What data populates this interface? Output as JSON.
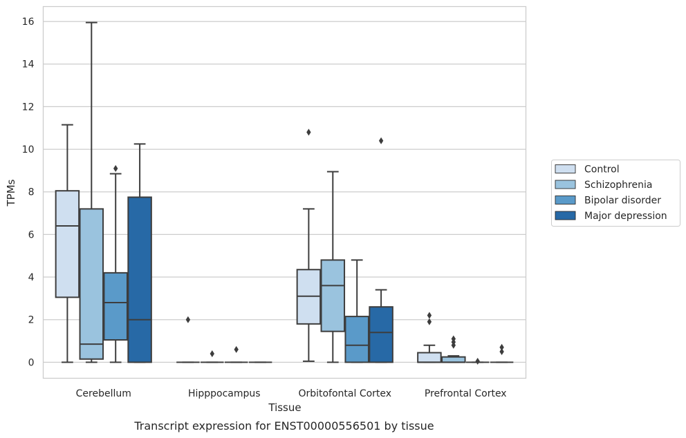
{
  "chart_data": {
    "type": "box",
    "title": "",
    "xlabel": "Tissue",
    "ylabel": "TPMs",
    "caption": "Transcript expression for ENST00000556501 by tissue",
    "ylim": [
      -0.75,
      16.7
    ],
    "yticks": [
      0,
      2,
      4,
      6,
      8,
      10,
      12,
      14,
      16
    ],
    "grid": "horizontal",
    "legend_position": "right",
    "categories": [
      "Cerebellum",
      "Hipppocampus",
      "Orbitofontal Cortex",
      "Prefrontal Cortex"
    ],
    "series": [
      {
        "name": "Control",
        "color": "#cfdff0",
        "boxes": [
          {
            "whislo": 0,
            "q1": 3.05,
            "med": 6.4,
            "q3": 8.05,
            "whishi": 11.15,
            "fliers": []
          },
          {
            "whislo": 0,
            "q1": 0,
            "med": 0,
            "q3": 0,
            "whishi": 0,
            "fliers": [
              2.0
            ]
          },
          {
            "whislo": 0.05,
            "q1": 1.8,
            "med": 3.1,
            "q3": 4.35,
            "whishi": 7.2,
            "fliers": [
              10.8
            ]
          },
          {
            "whislo": 0,
            "q1": 0,
            "med": 0,
            "q3": 0.45,
            "whishi": 0.8,
            "fliers": [
              1.9,
              2.2
            ]
          }
        ]
      },
      {
        "name": "Schizophrenia",
        "color": "#9ac3de",
        "boxes": [
          {
            "whislo": 0,
            "q1": 0.15,
            "med": 0.85,
            "q3": 7.2,
            "whishi": 15.95,
            "fliers": []
          },
          {
            "whislo": 0,
            "q1": 0,
            "med": 0,
            "q3": 0,
            "whishi": 0,
            "fliers": [
              0.4
            ]
          },
          {
            "whislo": 0,
            "q1": 1.45,
            "med": 3.6,
            "q3": 4.8,
            "whishi": 8.95,
            "fliers": []
          },
          {
            "whislo": 0,
            "q1": 0,
            "med": 0,
            "q3": 0.25,
            "whishi": 0.3,
            "fliers": [
              0.8,
              0.95,
              1.1
            ]
          }
        ]
      },
      {
        "name": "Bipolar disorder",
        "color": "#5a9ac9",
        "boxes": [
          {
            "whislo": 0,
            "q1": 1.05,
            "med": 2.8,
            "q3": 4.2,
            "whishi": 8.85,
            "fliers": [
              9.1
            ]
          },
          {
            "whislo": 0,
            "q1": 0,
            "med": 0,
            "q3": 0,
            "whishi": 0,
            "fliers": [
              0.6
            ]
          },
          {
            "whislo": 0,
            "q1": 0,
            "med": 0.8,
            "q3": 2.15,
            "whishi": 4.8,
            "fliers": []
          },
          {
            "whislo": 0,
            "q1": 0,
            "med": 0,
            "q3": 0,
            "whishi": 0,
            "fliers": [
              0.05
            ]
          }
        ]
      },
      {
        "name": "Major depression",
        "color": "#2769a6",
        "boxes": [
          {
            "whislo": 0,
            "q1": 0,
            "med": 2.0,
            "q3": 7.75,
            "whishi": 10.25,
            "fliers": []
          },
          {
            "whislo": 0,
            "q1": 0,
            "med": 0,
            "q3": 0,
            "whishi": 0,
            "fliers": []
          },
          {
            "whislo": 0,
            "q1": 0,
            "med": 1.4,
            "q3": 2.6,
            "whishi": 3.4,
            "fliers": [
              10.4
            ]
          },
          {
            "whislo": 0,
            "q1": 0,
            "med": 0,
            "q3": 0,
            "whishi": 0,
            "fliers": [
              0.5,
              0.7
            ]
          }
        ]
      }
    ]
  }
}
